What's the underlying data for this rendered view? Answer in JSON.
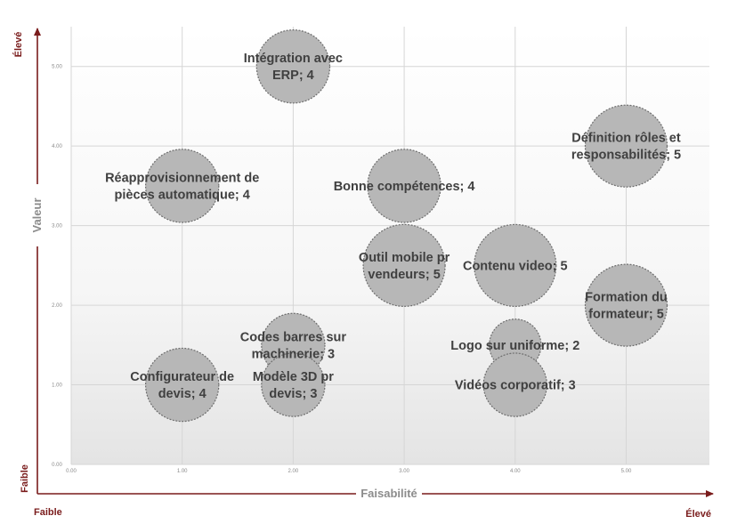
{
  "chart_data": {
    "type": "bubble",
    "xlabel": "Faisabilité",
    "ylabel": "Valeur",
    "xlim": [
      0,
      5.75
    ],
    "ylim": [
      0,
      5.5
    ],
    "x_ticks": [
      "0.00",
      "1.00",
      "2.00",
      "3.00",
      "4.00",
      "5.00"
    ],
    "y_ticks": [
      "0.00",
      "1.00",
      "2.00",
      "3.00",
      "4.00",
      "5.00"
    ],
    "grid": true,
    "corner_labels": {
      "y_top": "Élevé",
      "y_bottom": "Faible",
      "x_left": "Faible",
      "x_right": "Élevé"
    },
    "points": [
      {
        "label": "Intégration avec ERP; 4",
        "lines": [
          "Intégration avec",
          "ERP; 4"
        ],
        "x": 2,
        "y": 5,
        "size": 4
      },
      {
        "label": "Définition rôles et responsabilités; 5",
        "lines": [
          "Définition rôles et",
          "responsabilités; 5"
        ],
        "x": 5,
        "y": 4,
        "size": 5
      },
      {
        "label": "Réapprovisionnement de pièces automatique; 4",
        "lines": [
          "Réapprovisionnement de",
          "pièces automatique; 4"
        ],
        "x": 1,
        "y": 3.5,
        "size": 4
      },
      {
        "label": "Bonne compétences; 4",
        "lines": [
          "Bonne compétences; 4"
        ],
        "x": 3,
        "y": 3.5,
        "size": 4
      },
      {
        "label": "Outil mobile pr vendeurs; 5",
        "lines": [
          "Outil mobile pr",
          "vendeurs; 5"
        ],
        "x": 3,
        "y": 2.5,
        "size": 5
      },
      {
        "label": "Contenu video; 5",
        "lines": [
          "Contenu video; 5"
        ],
        "x": 4,
        "y": 2.5,
        "size": 5
      },
      {
        "label": "Formation du formateur; 5",
        "lines": [
          "Formation du",
          "formateur; 5"
        ],
        "x": 5,
        "y": 2,
        "size": 5
      },
      {
        "label": "Codes barres sur machinerie; 3",
        "lines": [
          "Codes barres sur",
          "machinerie; 3"
        ],
        "x": 2,
        "y": 1.5,
        "size": 3
      },
      {
        "label": "Logo sur uniforme; 2",
        "lines": [
          "Logo sur uniforme; 2"
        ],
        "x": 4,
        "y": 1.5,
        "size": 2
      },
      {
        "label": "Configurateur de devis; 4",
        "lines": [
          "Configurateur de",
          "devis; 4"
        ],
        "x": 1,
        "y": 1,
        "size": 4
      },
      {
        "label": "Modèle 3D pr devis; 3",
        "lines": [
          "Modèle 3D pr",
          "devis; 3"
        ],
        "x": 2,
        "y": 1,
        "size": 3
      },
      {
        "label": "Vidéos corporatif; 3",
        "lines": [
          "Vidéos corporatif; 3"
        ],
        "x": 4,
        "y": 1,
        "size": 3
      }
    ],
    "colors": {
      "bubble_fill": "#b7b7b7",
      "bubble_stroke": "#6e6e6e",
      "arrow": "#7a1c1c",
      "grid": "#d6d6d6",
      "label": "#404040"
    }
  }
}
